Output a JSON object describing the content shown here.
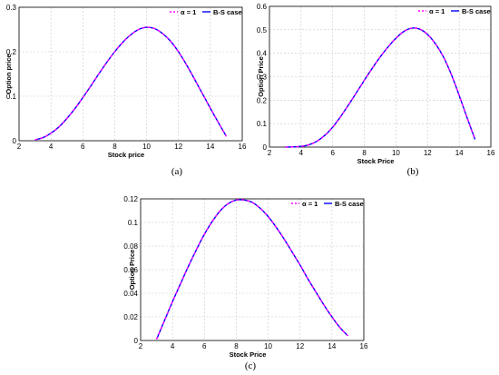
{
  "colors": {
    "alpha_series": "#ff00ff",
    "bs_series": "#0000ff"
  },
  "chart_data": [
    {
      "panel_label": "(a)",
      "type": "line",
      "xlabel": "Stock price",
      "ylabel": "Option price",
      "xlim": [
        2,
        16
      ],
      "ylim": [
        0,
        0.3
      ],
      "xticks": [
        "2",
        "4",
        "6",
        "8",
        "10",
        "12",
        "14",
        "16"
      ],
      "yticks": [
        "0",
        "0.1",
        "0.2",
        "0.3"
      ],
      "grid": true,
      "legend_position": "top-right",
      "x": [
        3,
        3.5,
        4,
        4.5,
        5,
        5.5,
        6,
        6.5,
        7,
        7.5,
        8,
        8.5,
        9,
        9.5,
        10,
        10.5,
        11,
        11.5,
        12,
        12.5,
        13,
        13.5,
        14,
        14.5,
        15
      ],
      "series": [
        {
          "name": "α = 1",
          "values": [
            0.002,
            0.007,
            0.017,
            0.031,
            0.05,
            0.072,
            0.097,
            0.123,
            0.15,
            0.176,
            0.2,
            0.221,
            0.238,
            0.25,
            0.255,
            0.252,
            0.241,
            0.224,
            0.2,
            0.171,
            0.139,
            0.106,
            0.073,
            0.041,
            0.01
          ]
        },
        {
          "name": "B-S case",
          "values": [
            0.002,
            0.007,
            0.017,
            0.031,
            0.05,
            0.072,
            0.097,
            0.123,
            0.15,
            0.176,
            0.2,
            0.221,
            0.238,
            0.25,
            0.255,
            0.252,
            0.241,
            0.224,
            0.2,
            0.171,
            0.139,
            0.106,
            0.073,
            0.041,
            0.01
          ]
        }
      ]
    },
    {
      "panel_label": "(b)",
      "type": "line",
      "xlabel": "Stock Price",
      "ylabel": "Option Price",
      "xlim": [
        2,
        16
      ],
      "ylim": [
        0,
        0.6
      ],
      "xticks": [
        "2",
        "4",
        "6",
        "8",
        "10",
        "12",
        "14",
        "16"
      ],
      "yticks": [
        "0",
        "0.1",
        "0.2",
        "0.3",
        "0.4",
        "0.5",
        "0.6"
      ],
      "grid": true,
      "legend_position": "top-right",
      "x": [
        3,
        3.5,
        4,
        4.5,
        5,
        5.5,
        6,
        6.5,
        7,
        7.5,
        8,
        8.5,
        9,
        9.5,
        10,
        10.5,
        11,
        11.5,
        12,
        12.5,
        13,
        13.5,
        14,
        14.5,
        15
      ],
      "series": [
        {
          "name": "α = 1",
          "values": [
            0,
            0.001,
            0.003,
            0.01,
            0.025,
            0.05,
            0.085,
            0.13,
            0.18,
            0.232,
            0.285,
            0.336,
            0.384,
            0.427,
            0.464,
            0.493,
            0.507,
            0.503,
            0.48,
            0.44,
            0.385,
            0.31,
            0.22,
            0.125,
            0.033
          ]
        },
        {
          "name": "B-S case",
          "values": [
            0,
            0.001,
            0.003,
            0.01,
            0.025,
            0.05,
            0.085,
            0.13,
            0.18,
            0.232,
            0.285,
            0.336,
            0.384,
            0.427,
            0.464,
            0.493,
            0.507,
            0.503,
            0.48,
            0.44,
            0.385,
            0.31,
            0.22,
            0.125,
            0.033
          ]
        }
      ]
    },
    {
      "panel_label": "(c)",
      "type": "line",
      "xlabel": "Stock Price",
      "ylabel": "Option Price",
      "xlim": [
        2,
        16
      ],
      "ylim": [
        0,
        0.12
      ],
      "xticks": [
        "2",
        "4",
        "6",
        "8",
        "10",
        "12",
        "14",
        "16"
      ],
      "yticks": [
        "0",
        "0.02",
        "0.04",
        "0.06",
        "0.08",
        "0.1",
        "0.12"
      ],
      "grid": true,
      "legend_position": "top-right",
      "x": [
        3,
        3.5,
        4,
        4.5,
        5,
        5.5,
        6,
        6.5,
        7,
        7.5,
        8,
        8.5,
        9,
        9.5,
        10,
        10.5,
        11,
        11.5,
        12,
        12.5,
        13,
        13.5,
        14,
        14.5,
        15
      ],
      "series": [
        {
          "name": "α = 1",
          "values": [
            0.001,
            0.017,
            0.033,
            0.048,
            0.063,
            0.077,
            0.09,
            0.101,
            0.11,
            0.116,
            0.119,
            0.119,
            0.117,
            0.112,
            0.105,
            0.096,
            0.086,
            0.075,
            0.064,
            0.052,
            0.041,
            0.03,
            0.02,
            0.011,
            0.004
          ]
        },
        {
          "name": "B-S case",
          "values": [
            0.001,
            0.017,
            0.033,
            0.048,
            0.063,
            0.077,
            0.09,
            0.101,
            0.11,
            0.116,
            0.119,
            0.119,
            0.117,
            0.112,
            0.105,
            0.096,
            0.086,
            0.075,
            0.064,
            0.052,
            0.041,
            0.03,
            0.02,
            0.011,
            0.004
          ]
        }
      ]
    }
  ]
}
